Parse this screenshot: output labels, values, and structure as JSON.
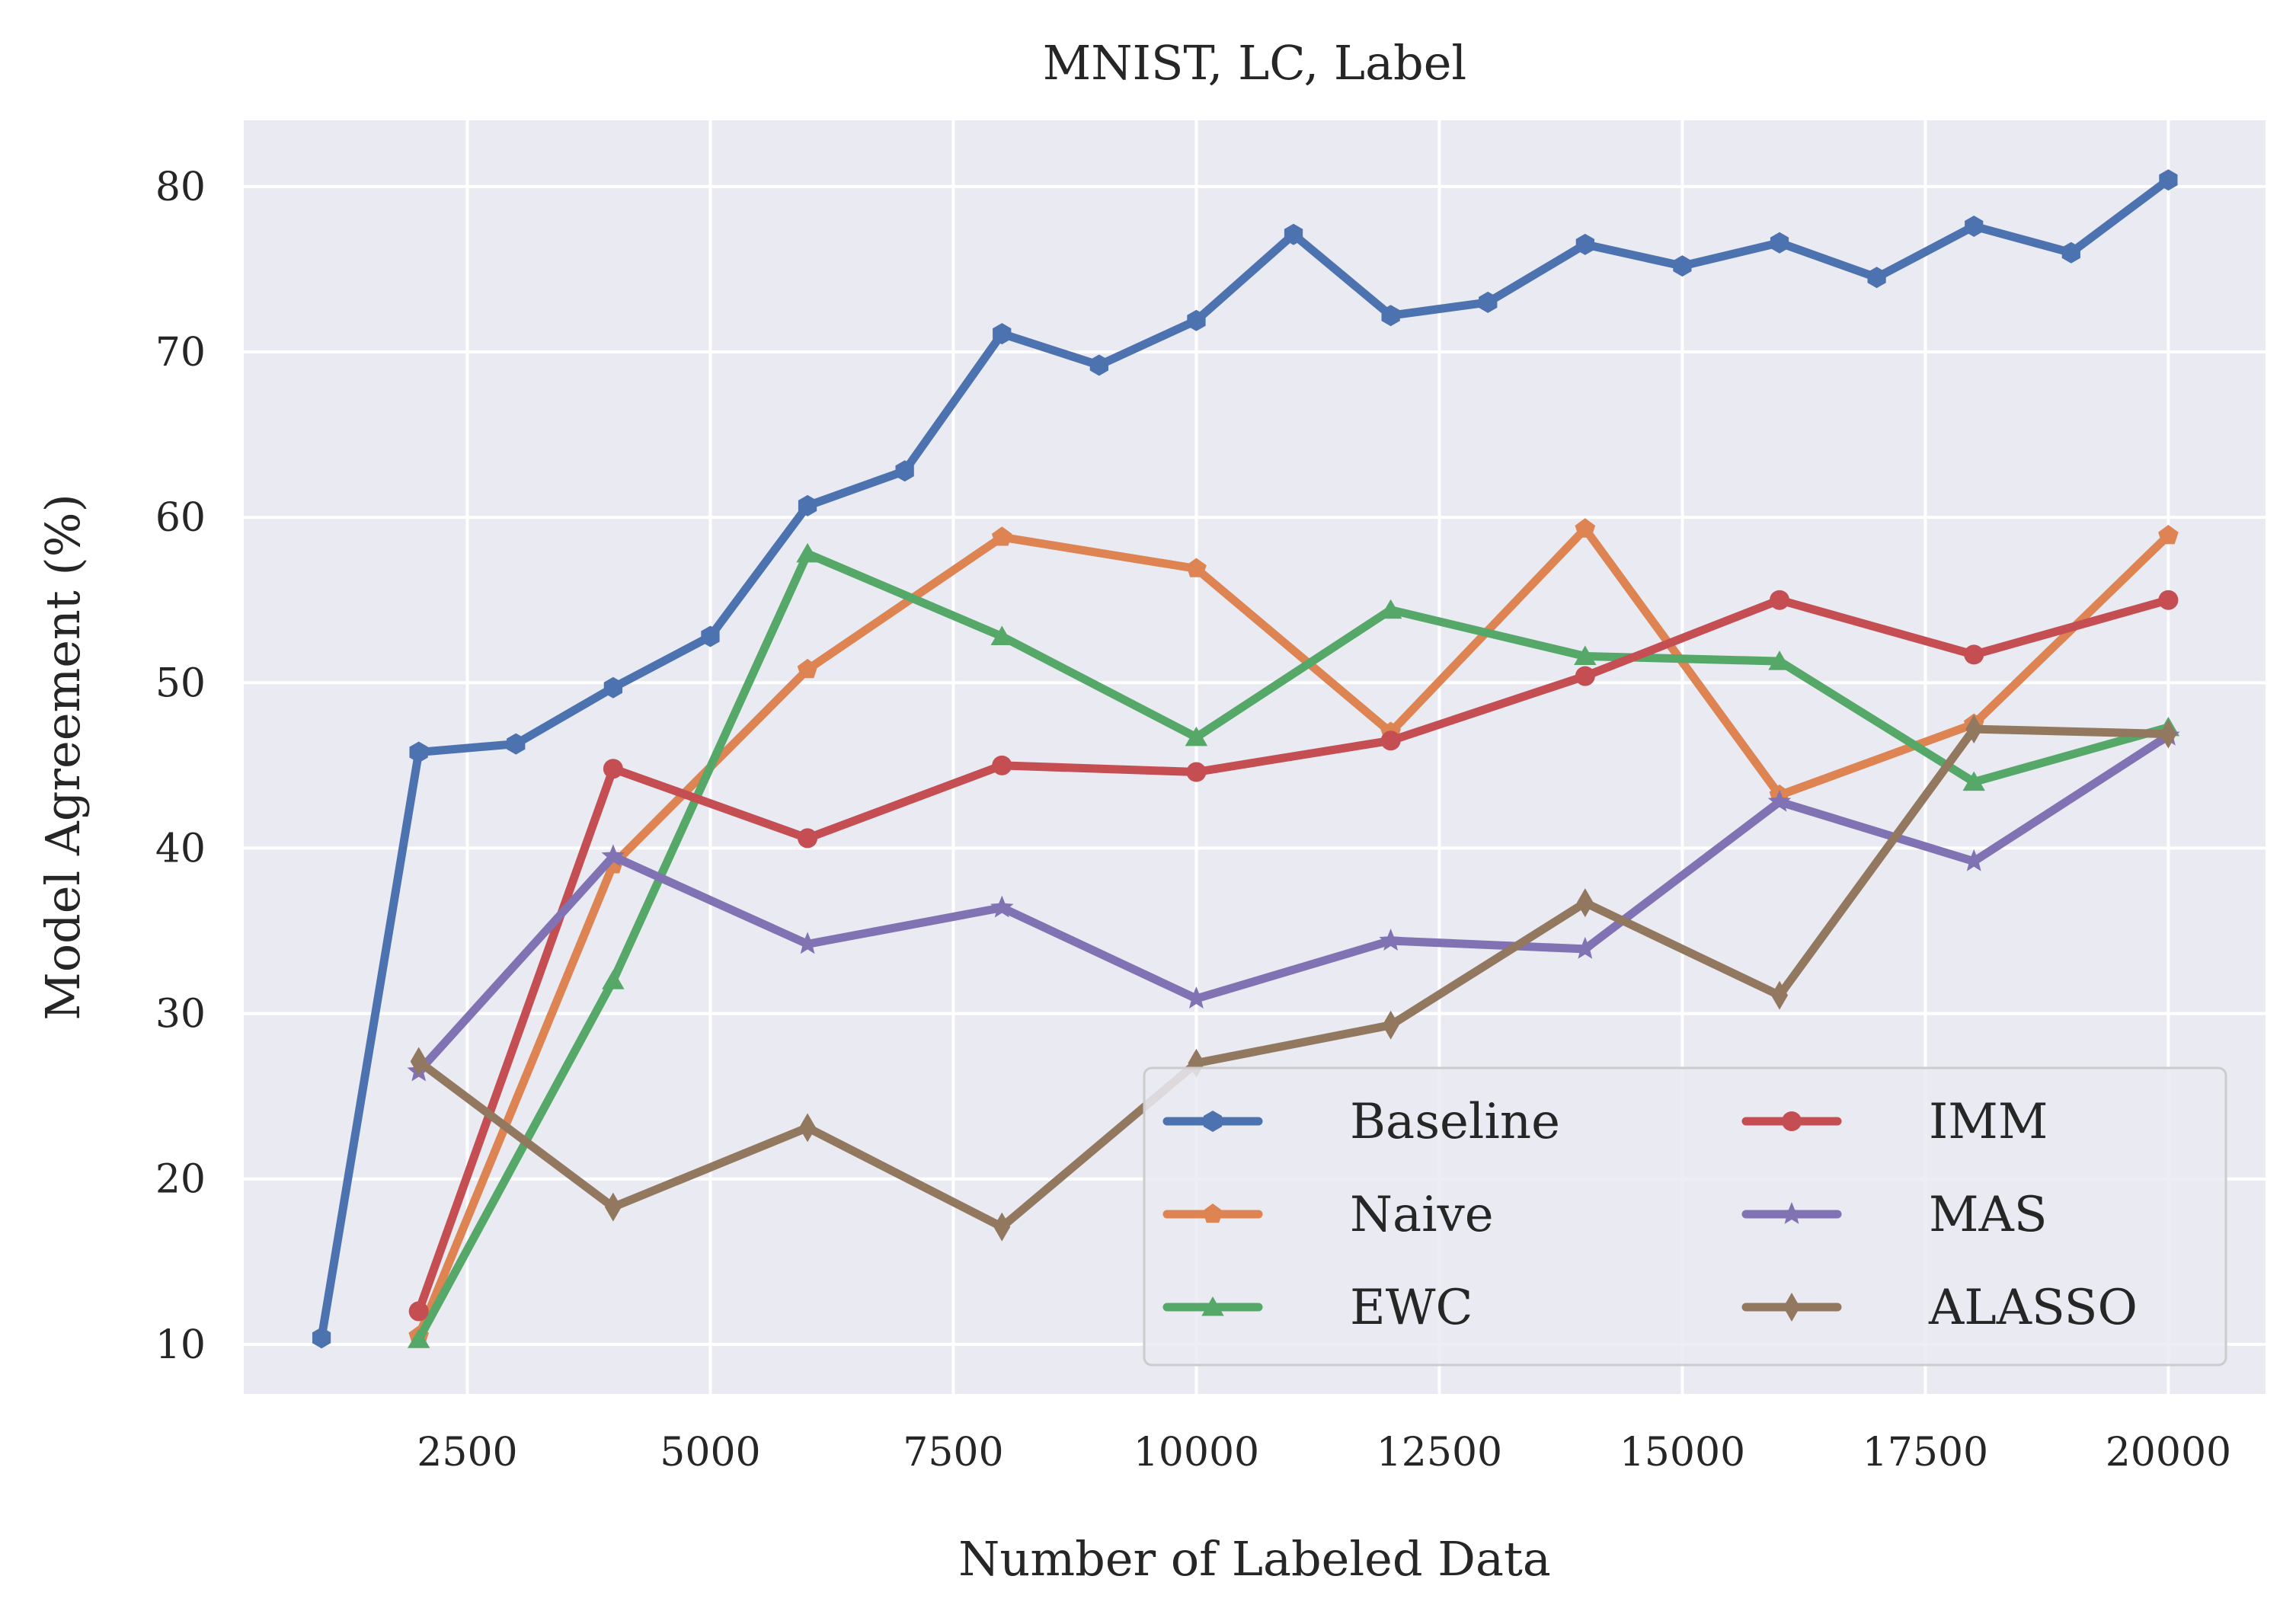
{
  "chart_data": {
    "type": "line",
    "title": "MNIST, LC, Label",
    "xlabel": "Number of Labeled Data",
    "ylabel": "Model Agreement (%)",
    "xlim": [
      200,
      21000
    ],
    "ylim": [
      7,
      84
    ],
    "x_ticks": [
      2500,
      5000,
      7500,
      10000,
      12500,
      15000,
      17500,
      20000
    ],
    "y_ticks": [
      10,
      20,
      30,
      40,
      50,
      60,
      70,
      80
    ],
    "grid": true,
    "legend_position": "lower-right",
    "legend_columns": 2,
    "series": [
      {
        "name": "Baseline",
        "color": "#4C72B0",
        "marker": "hexagon",
        "x": [
          1000,
          2000,
          3000,
          4000,
          5000,
          6000,
          7000,
          8000,
          9000,
          10000,
          11000,
          12000,
          13000,
          14000,
          15000,
          16000,
          17000,
          18000,
          19000,
          20000
        ],
        "values": [
          10.4,
          45.8,
          46.3,
          49.7,
          52.8,
          60.7,
          62.8,
          71.1,
          69.2,
          71.9,
          77.1,
          72.2,
          73.0,
          76.5,
          75.2,
          76.6,
          74.5,
          77.6,
          76.0,
          80.4
        ]
      },
      {
        "name": "Naive",
        "color": "#DD8452",
        "marker": "pentagon",
        "x": [
          2000,
          4000,
          6000,
          8000,
          10000,
          12000,
          14000,
          16000,
          18000,
          20000
        ],
        "values": [
          10.5,
          39.0,
          50.8,
          58.8,
          56.9,
          47.0,
          59.3,
          43.2,
          47.5,
          58.9
        ]
      },
      {
        "name": "EWC",
        "color": "#55A868",
        "marker": "triangle",
        "x": [
          2000,
          4000,
          6000,
          8000,
          10000,
          12000,
          14000,
          16000,
          18000,
          20000
        ],
        "values": [
          10.3,
          32.0,
          57.8,
          52.8,
          46.7,
          54.4,
          51.6,
          51.3,
          44.0,
          47.3
        ]
      },
      {
        "name": "IMM",
        "color": "#C44E52",
        "marker": "circle",
        "x": [
          2000,
          4000,
          6000,
          8000,
          10000,
          12000,
          14000,
          16000,
          18000,
          20000
        ],
        "values": [
          12.0,
          44.8,
          40.6,
          45.0,
          44.6,
          46.5,
          50.4,
          55.0,
          51.7,
          55.0
        ]
      },
      {
        "name": "MAS",
        "color": "#8172B3",
        "marker": "star",
        "x": [
          2000,
          4000,
          6000,
          8000,
          10000,
          12000,
          14000,
          16000,
          18000,
          20000
        ],
        "values": [
          26.5,
          39.5,
          34.2,
          36.4,
          30.9,
          34.4,
          33.9,
          42.8,
          39.2,
          46.8
        ]
      },
      {
        "name": "ALASSO",
        "color": "#937860",
        "marker": "diamond",
        "x": [
          2000,
          4000,
          6000,
          8000,
          10000,
          12000,
          14000,
          16000,
          18000,
          20000
        ],
        "values": [
          27.1,
          18.3,
          23.1,
          17.1,
          27.0,
          29.3,
          36.7,
          31.1,
          47.2,
          46.9
        ]
      }
    ]
  }
}
